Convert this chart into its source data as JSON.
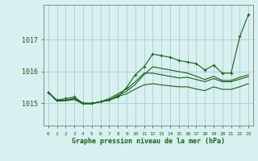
{
  "background_color": "#d8f0f0",
  "grid_color": "#aacfcf",
  "line_color": "#1a5e1a",
  "title": "Graphe pression niveau de la mer (hPa)",
  "xlim": [
    -0.5,
    23.5
  ],
  "ylim": [
    1014.3,
    1018.1
  ],
  "yticks": [
    1015,
    1016,
    1017
  ],
  "xticks": [
    0,
    1,
    2,
    3,
    4,
    5,
    6,
    7,
    8,
    9,
    10,
    11,
    12,
    13,
    14,
    15,
    16,
    17,
    18,
    19,
    20,
    21,
    22,
    23
  ],
  "series_marked": [
    1015.35,
    1015.1,
    1015.15,
    1015.2,
    1015.0,
    1015.0,
    1015.05,
    1015.1,
    1015.2,
    1015.5,
    1015.9,
    1016.15,
    1016.55,
    1016.5,
    1016.45,
    1016.35,
    1016.3,
    1016.25,
    1016.05,
    1016.2,
    1015.95,
    1015.95,
    1017.1,
    1017.8
  ],
  "series_mid1": [
    1015.35,
    1015.08,
    1015.1,
    1015.15,
    1015.0,
    1015.0,
    1015.05,
    1015.1,
    1015.25,
    1015.38,
    1015.6,
    1015.9,
    1016.15,
    1016.1,
    1016.05,
    1016.0,
    1015.95,
    1015.85,
    1015.75,
    1015.85,
    1015.72,
    1015.72,
    1015.82,
    1015.9
  ],
  "series_mid2": [
    1015.35,
    1015.08,
    1015.1,
    1015.15,
    1015.0,
    1015.0,
    1015.05,
    1015.15,
    1015.3,
    1015.45,
    1015.68,
    1015.95,
    1015.95,
    1015.9,
    1015.85,
    1015.8,
    1015.82,
    1015.75,
    1015.68,
    1015.78,
    1015.68,
    1015.68,
    1015.76,
    1015.84
  ],
  "series_lower": [
    1015.35,
    1015.07,
    1015.08,
    1015.12,
    1014.98,
    1014.98,
    1015.05,
    1015.1,
    1015.22,
    1015.3,
    1015.45,
    1015.58,
    1015.62,
    1015.58,
    1015.55,
    1015.52,
    1015.52,
    1015.45,
    1015.4,
    1015.52,
    1015.44,
    1015.44,
    1015.52,
    1015.62
  ]
}
